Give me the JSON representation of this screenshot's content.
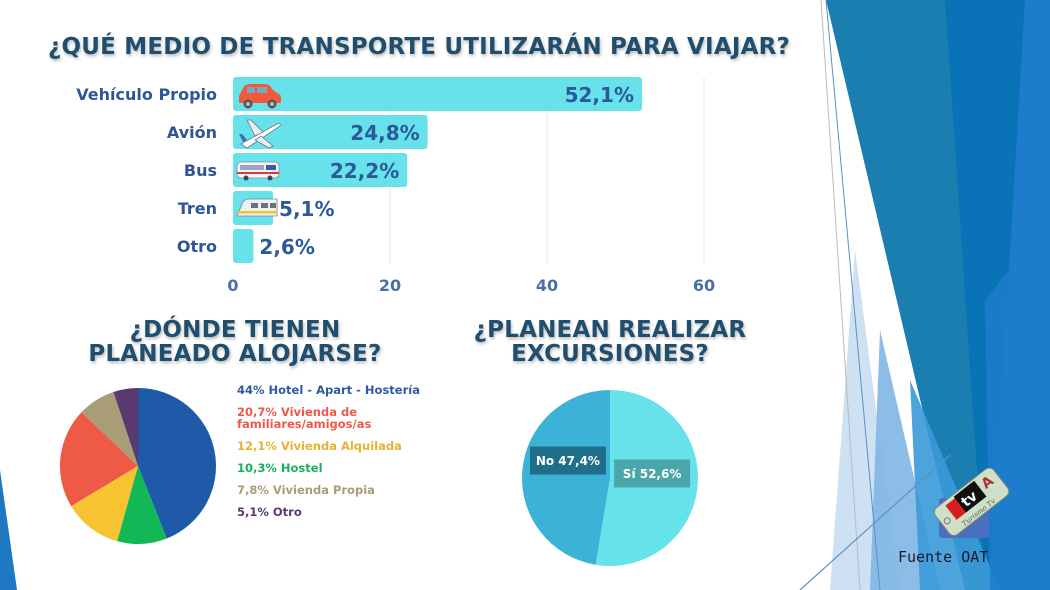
{
  "theme": {
    "bar_color": "#67e2ea",
    "title_color": "#1f4e6e",
    "deco_blues": [
      "#1e78c2",
      "#1a7fb0",
      "#0a73b8",
      "#3a9ad8",
      "#7fb6e4",
      "#c8def2"
    ]
  },
  "titles": {
    "transport": "¿QUÉ MEDIO DE TRANSPORTE UTILIZARÁN PARA VIAJAR?",
    "lodging_line1": "¿DÓNDE TIENEN",
    "lodging_line2": "PLANEADO ALOJARSE?",
    "excursions_line1": "¿PLANEAN REALIZAR",
    "excursions_line2": "EXCURSIONES?"
  },
  "source": "Fuente OAT",
  "logo": {
    "text": "tv",
    "caption": "Turismo Tv"
  },
  "chart_data": [
    {
      "type": "bar",
      "orientation": "horizontal",
      "title": "¿QUÉ MEDIO DE TRANSPORTE UTILIZARÁN PARA VIAJAR?",
      "categories": [
        "Vehículo Propio",
        "Avión",
        "Bus",
        "Tren",
        "Otro"
      ],
      "values": [
        52.1,
        24.8,
        22.2,
        5.1,
        2.6
      ],
      "data_labels": [
        "52,1%",
        "24,8%",
        "22,2%",
        "5,1%",
        "2,6%"
      ],
      "icons": [
        "car-icon",
        "airplane-icon",
        "bus-icon",
        "train-icon",
        null
      ],
      "xlim": [
        0,
        60
      ],
      "xticks": [
        0,
        20,
        40,
        60
      ],
      "xtick_labels": [
        "0",
        "20",
        "40",
        "60"
      ],
      "grid": true,
      "xlabel": "",
      "ylabel": ""
    },
    {
      "type": "pie",
      "title": "¿DÓNDE TIENEN PLANEADO ALOJARSE?",
      "slices": [
        {
          "label": "Hotel - Apart - Hostería",
          "value": 44,
          "legend": "44% Hotel - Apart - Hostería",
          "color": "#1e5aa8"
        },
        {
          "label": "Hostel",
          "value": 10.3,
          "legend": "10,3% Hostel",
          "color": "#12b856"
        },
        {
          "label": "Vivienda Alquilada",
          "value": 12.1,
          "legend": "12,1% Vivienda Alquilada",
          "color": "#f7c431"
        },
        {
          "label": "Vivienda de familiares/amigos/as",
          "value": 20.7,
          "legend": "20,7% Vivienda de familiares/amigos/as",
          "color": "#ee5a45"
        },
        {
          "label": "Vivienda Propia",
          "value": 7.8,
          "legend": "7,8% Vivienda Propia",
          "color": "#a89d77"
        },
        {
          "label": "Otro",
          "value": 5.1,
          "legend": "5,1% Otro",
          "color": "#5a3a6e"
        }
      ],
      "legend_order": [
        0,
        3,
        2,
        1,
        4,
        5
      ],
      "legend_text_colors": [
        "#2e5aa0",
        "#ea5a4a",
        "#e8b230",
        "#17b05a",
        "#a89d77",
        "#5a3a6e"
      ],
      "legend_position": "right"
    },
    {
      "type": "pie",
      "title": "¿PLANEAN REALIZAR EXCURSIONES?",
      "slices": [
        {
          "label": "Sí",
          "value": 52.6,
          "data_label": "Sí 52,6%",
          "color": "#65e2ea",
          "label_bg": "#4aa6a8"
        },
        {
          "label": "No",
          "value": 47.4,
          "data_label": "No 47,4%",
          "color": "#3cb3d6",
          "label_bg": "#1f6e8a"
        }
      ]
    }
  ]
}
